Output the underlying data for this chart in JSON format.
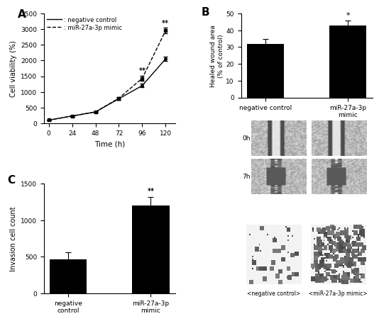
{
  "panel_A": {
    "x": [
      0,
      24,
      48,
      72,
      96,
      120
    ],
    "neg_control": [
      100,
      230,
      360,
      780,
      1200,
      2050
    ],
    "neg_control_err": [
      15,
      20,
      25,
      40,
      60,
      70
    ],
    "mimic": [
      100,
      230,
      360,
      800,
      1430,
      2950
    ],
    "mimic_err": [
      15,
      20,
      25,
      45,
      80,
      90
    ],
    "xlabel": "Time (h)",
    "ylabel": "Cell viability (%)",
    "ylim": [
      0,
      3500
    ],
    "yticks": [
      0,
      500,
      1000,
      1500,
      2000,
      2500,
      3000,
      3500
    ],
    "legend1": ": negative control",
    "legend2": ": miR-27a-3p mimic",
    "sig_96": "**",
    "sig_120": "**"
  },
  "panel_B": {
    "categories": [
      "negative control",
      "miR-27a-3p\nmimic"
    ],
    "values": [
      32,
      43
    ],
    "errors": [
      3,
      3
    ],
    "ylabel": "Healed wound area\n(% of control)",
    "ylim": [
      0,
      50
    ],
    "yticks": [
      0,
      10,
      20,
      30,
      40,
      50
    ],
    "sig": "*",
    "bar_color": "#000000"
  },
  "panel_C": {
    "categories": [
      "negative\ncontrol",
      "miR-27a-3p\nmimic"
    ],
    "values": [
      460,
      1200
    ],
    "errors": [
      100,
      120
    ],
    "ylabel": "Invasion cell count",
    "ylim": [
      0,
      1500
    ],
    "yticks": [
      0,
      500,
      1000,
      1500
    ],
    "sig": "**",
    "bar_color": "#000000"
  },
  "wound_row_labels": [
    "0h",
    "7h"
  ],
  "invasion_col_labels": [
    "<negative control>",
    "<miR-27a-3p mimic>"
  ]
}
